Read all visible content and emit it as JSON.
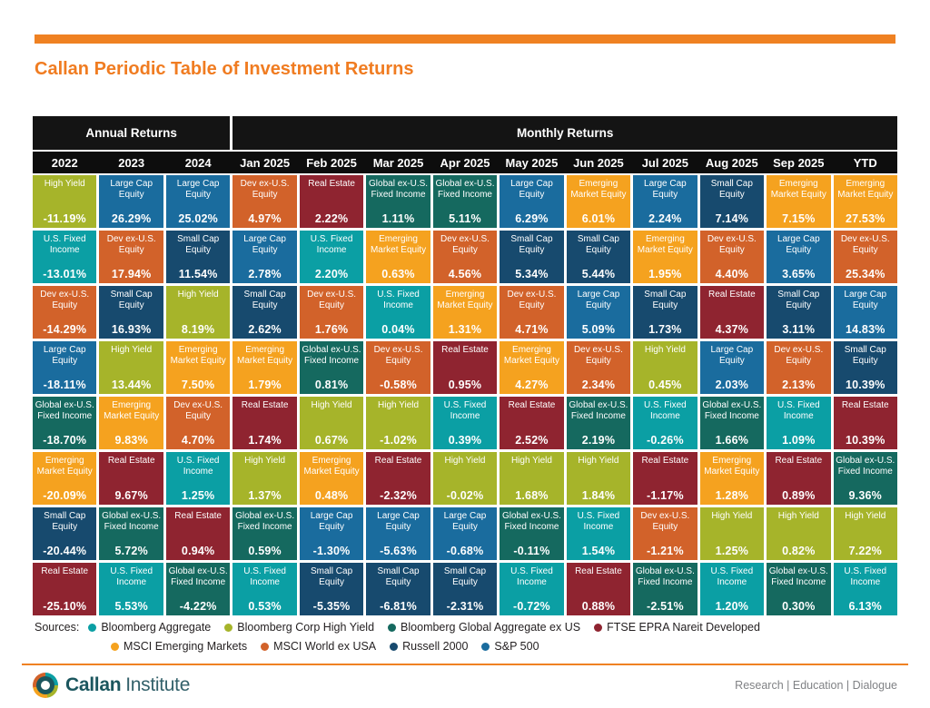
{
  "header": {
    "title": "Callan Periodic Table of Investment Returns"
  },
  "chart_data": {
    "type": "table",
    "title": "Callan Periodic Table of Investment Returns",
    "group_headers": [
      {
        "id": "annual",
        "label": "Annual Returns",
        "span": 3
      },
      {
        "id": "monthly",
        "label": "Monthly Returns",
        "span": 10
      }
    ],
    "asset_classes": {
      "hy": {
        "label": "High Yield",
        "color": "#a6b42a"
      },
      "lc": {
        "label": "Large Cap Equity",
        "color": "#1a6c9e"
      },
      "sc": {
        "label": "Small Cap Equity",
        "color": "#174a6e"
      },
      "dx": {
        "label": "Dev ex-U.S. Equity",
        "color": "#d2622a"
      },
      "re": {
        "label": "Real Estate",
        "color": "#8f2430"
      },
      "gf": {
        "label": "Global ex-U.S. Fixed Income",
        "color": "#15695f"
      },
      "uf": {
        "label": "U.S. Fixed Income",
        "color": "#0b9fa4"
      },
      "em": {
        "label": "Emerging Market Equity",
        "color": "#f5a21f"
      }
    },
    "columns": [
      {
        "label": "2022",
        "cells": [
          [
            "hy",
            "-11.19%"
          ],
          [
            "uf",
            "-13.01%"
          ],
          [
            "dx",
            "-14.29%"
          ],
          [
            "lc",
            "-18.11%"
          ],
          [
            "gf",
            "-18.70%"
          ],
          [
            "em",
            "-20.09%"
          ],
          [
            "sc",
            "-20.44%"
          ],
          [
            "re",
            "-25.10%"
          ]
        ]
      },
      {
        "label": "2023",
        "cells": [
          [
            "lc",
            "26.29%"
          ],
          [
            "dx",
            "17.94%"
          ],
          [
            "sc",
            "16.93%"
          ],
          [
            "hy",
            "13.44%"
          ],
          [
            "em",
            "9.83%"
          ],
          [
            "re",
            "9.67%"
          ],
          [
            "gf",
            "5.72%"
          ],
          [
            "uf",
            "5.53%"
          ]
        ]
      },
      {
        "label": "2024",
        "cells": [
          [
            "lc",
            "25.02%"
          ],
          [
            "sc",
            "11.54%"
          ],
          [
            "hy",
            "8.19%"
          ],
          [
            "em",
            "7.50%"
          ],
          [
            "dx",
            "4.70%"
          ],
          [
            "uf",
            "1.25%"
          ],
          [
            "re",
            "0.94%"
          ],
          [
            "gf",
            "-4.22%"
          ]
        ]
      },
      {
        "label": "Jan 2025",
        "cells": [
          [
            "dx",
            "4.97%"
          ],
          [
            "lc",
            "2.78%"
          ],
          [
            "sc",
            "2.62%"
          ],
          [
            "em",
            "1.79%"
          ],
          [
            "re",
            "1.74%"
          ],
          [
            "hy",
            "1.37%"
          ],
          [
            "gf",
            "0.59%"
          ],
          [
            "uf",
            "0.53%"
          ]
        ]
      },
      {
        "label": "Feb 2025",
        "cells": [
          [
            "re",
            "2.22%"
          ],
          [
            "uf",
            "2.20%"
          ],
          [
            "dx",
            "1.76%"
          ],
          [
            "gf",
            "0.81%"
          ],
          [
            "hy",
            "0.67%"
          ],
          [
            "em",
            "0.48%"
          ],
          [
            "lc",
            "-1.30%"
          ],
          [
            "sc",
            "-5.35%"
          ]
        ]
      },
      {
        "label": "Mar 2025",
        "cells": [
          [
            "gf",
            "1.11%"
          ],
          [
            "em",
            "0.63%"
          ],
          [
            "uf",
            "0.04%"
          ],
          [
            "dx",
            "-0.58%"
          ],
          [
            "hy",
            "-1.02%"
          ],
          [
            "re",
            "-2.32%"
          ],
          [
            "lc",
            "-5.63%"
          ],
          [
            "sc",
            "-6.81%"
          ]
        ]
      },
      {
        "label": "Apr 2025",
        "cells": [
          [
            "gf",
            "5.11%"
          ],
          [
            "dx",
            "4.56%"
          ],
          [
            "em",
            "1.31%"
          ],
          [
            "re",
            "0.95%"
          ],
          [
            "uf",
            "0.39%"
          ],
          [
            "hy",
            "-0.02%"
          ],
          [
            "lc",
            "-0.68%"
          ],
          [
            "sc",
            "-2.31%"
          ]
        ]
      },
      {
        "label": "May 2025",
        "cells": [
          [
            "lc",
            "6.29%"
          ],
          [
            "sc",
            "5.34%"
          ],
          [
            "dx",
            "4.71%"
          ],
          [
            "em",
            "4.27%"
          ],
          [
            "re",
            "2.52%"
          ],
          [
            "hy",
            "1.68%"
          ],
          [
            "gf",
            "-0.11%"
          ],
          [
            "uf",
            "-0.72%"
          ]
        ]
      },
      {
        "label": "Jun 2025",
        "cells": [
          [
            "em",
            "6.01%"
          ],
          [
            "sc",
            "5.44%"
          ],
          [
            "lc",
            "5.09%"
          ],
          [
            "dx",
            "2.34%"
          ],
          [
            "gf",
            "2.19%"
          ],
          [
            "hy",
            "1.84%"
          ],
          [
            "uf",
            "1.54%"
          ],
          [
            "re",
            "0.88%"
          ]
        ]
      },
      {
        "label": "Jul 2025",
        "cells": [
          [
            "lc",
            "2.24%"
          ],
          [
            "em",
            "1.95%"
          ],
          [
            "sc",
            "1.73%"
          ],
          [
            "hy",
            "0.45%"
          ],
          [
            "uf",
            "-0.26%"
          ],
          [
            "re",
            "-1.17%"
          ],
          [
            "dx",
            "-1.21%"
          ],
          [
            "gf",
            "-2.51%"
          ]
        ]
      },
      {
        "label": "Aug 2025",
        "cells": [
          [
            "sc",
            "7.14%"
          ],
          [
            "dx",
            "4.40%"
          ],
          [
            "re",
            "4.37%"
          ],
          [
            "lc",
            "2.03%"
          ],
          [
            "gf",
            "1.66%"
          ],
          [
            "em",
            "1.28%"
          ],
          [
            "hy",
            "1.25%"
          ],
          [
            "uf",
            "1.20%"
          ]
        ]
      },
      {
        "label": "Sep 2025",
        "cells": [
          [
            "em",
            "7.15%"
          ],
          [
            "lc",
            "3.65%"
          ],
          [
            "sc",
            "3.11%"
          ],
          [
            "dx",
            "2.13%"
          ],
          [
            "uf",
            "1.09%"
          ],
          [
            "re",
            "0.89%"
          ],
          [
            "hy",
            "0.82%"
          ],
          [
            "gf",
            "0.30%"
          ]
        ]
      },
      {
        "label": "YTD",
        "cells": [
          [
            "em",
            "27.53%"
          ],
          [
            "dx",
            "25.34%"
          ],
          [
            "lc",
            "14.83%"
          ],
          [
            "sc",
            "10.39%"
          ],
          [
            "re",
            "10.39%"
          ],
          [
            "gf",
            "9.36%"
          ],
          [
            "hy",
            "7.22%"
          ],
          [
            "uf",
            "6.13%"
          ]
        ]
      }
    ]
  },
  "sources": {
    "label": "Sources:",
    "rows": [
      [
        {
          "label": "Bloomberg Aggregate",
          "color": "#0b9fa4"
        },
        {
          "label": "Bloomberg Corp High Yield",
          "color": "#a6b42a"
        },
        {
          "label": "Bloomberg Global Aggregate ex US",
          "color": "#15695f"
        },
        {
          "label": "FTSE EPRA Nareit Developed",
          "color": "#8f2430"
        }
      ],
      [
        {
          "label": "MSCI Emerging Markets",
          "color": "#f5a21f"
        },
        {
          "label": "MSCI World ex USA",
          "color": "#d2622a"
        },
        {
          "label": "Russell 2000",
          "color": "#174a6e"
        },
        {
          "label": "S&P 500",
          "color": "#1a6c9e"
        }
      ]
    ]
  },
  "footer": {
    "brand": {
      "name_bold": "Callan",
      "name_light": "Institute"
    },
    "tagline": "Research | Education | Dialogue"
  }
}
